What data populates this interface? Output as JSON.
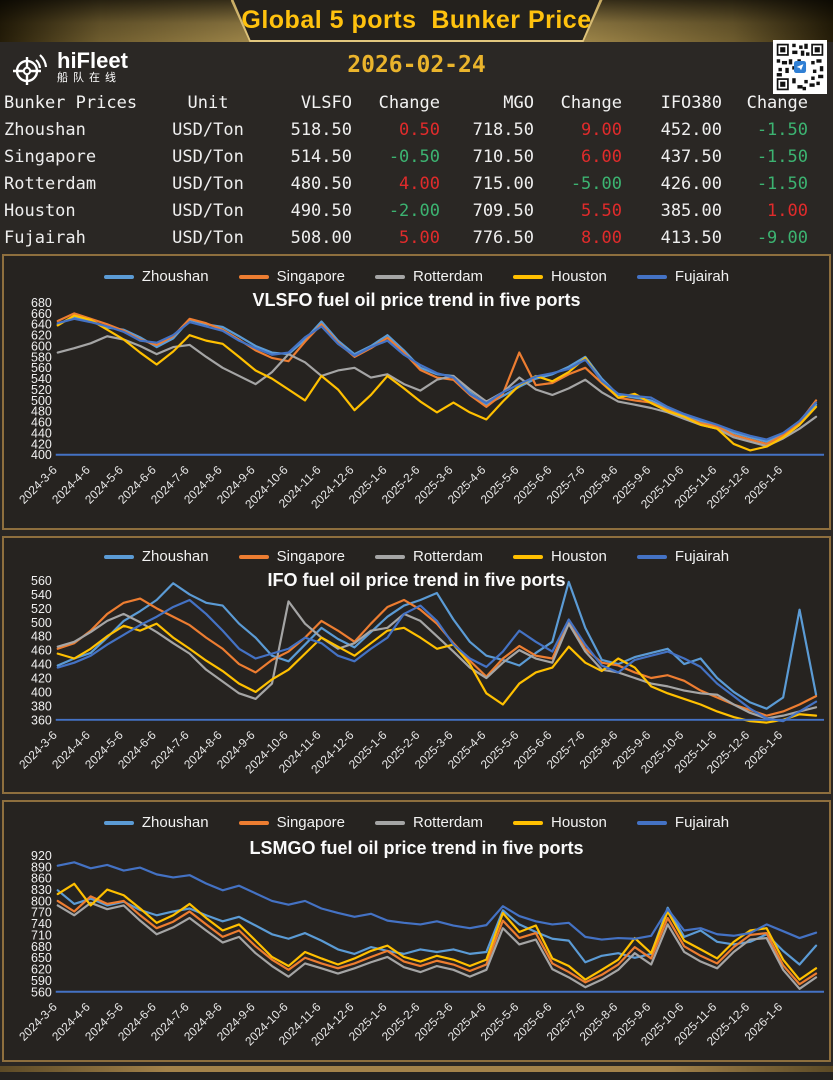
{
  "header": {
    "title": "Global 5 ports  Bunker Price",
    "brand": {
      "name": "hiFleet",
      "subtitle": "船队在线"
    },
    "date": "2026-02-24"
  },
  "colors": {
    "change": {
      "up": "#e02b2b",
      "down": "#3cb371"
    },
    "axis_line": "#4472C4",
    "gold": "#ffc20e"
  },
  "table": {
    "columns": [
      "Bunker Prices",
      "Unit",
      "VLSFO",
      "Change",
      "MGO",
      "Change",
      "IFO380",
      "Change"
    ],
    "rows": [
      {
        "port": "Zhoushan",
        "unit": "USD/Ton",
        "vlsfo": "518.50",
        "vlsfo_chg": "0.50",
        "vlsfo_dir": "up",
        "mgo": "718.50",
        "mgo_chg": "9.00",
        "mgo_dir": "up",
        "ifo": "452.00",
        "ifo_chg": "-1.50",
        "ifo_dir": "down"
      },
      {
        "port": "Singapore",
        "unit": "USD/Ton",
        "vlsfo": "514.50",
        "vlsfo_chg": "-0.50",
        "vlsfo_dir": "down",
        "mgo": "710.50",
        "mgo_chg": "6.00",
        "mgo_dir": "up",
        "ifo": "437.50",
        "ifo_chg": "-1.50",
        "ifo_dir": "down"
      },
      {
        "port": "Rotterdam",
        "unit": "USD/Ton",
        "vlsfo": "480.50",
        "vlsfo_chg": "4.00",
        "vlsfo_dir": "up",
        "mgo": "715.00",
        "mgo_chg": "-5.00",
        "mgo_dir": "down",
        "ifo": "426.00",
        "ifo_chg": "-1.50",
        "ifo_dir": "down"
      },
      {
        "port": "Houston",
        "unit": "USD/Ton",
        "vlsfo": "490.50",
        "vlsfo_chg": "-2.00",
        "vlsfo_dir": "down",
        "mgo": "709.50",
        "mgo_chg": "5.50",
        "mgo_dir": "up",
        "ifo": "385.00",
        "ifo_chg": "1.00",
        "ifo_dir": "up"
      },
      {
        "port": "Fujairah",
        "unit": "USD/Ton",
        "vlsfo": "508.00",
        "vlsfo_chg": "5.00",
        "vlsfo_dir": "up",
        "mgo": "776.50",
        "mgo_chg": "8.00",
        "mgo_dir": "up",
        "ifo": "413.50",
        "ifo_chg": "-9.00",
        "ifo_dir": "down"
      }
    ]
  },
  "chart_data": [
    {
      "type": "line",
      "title": "VLSFO fuel oil price trend in five ports",
      "legend_position": "top",
      "grid": false,
      "ylim": [
        400,
        680
      ],
      "ytick_step": 20,
      "categories": [
        "2024-3-6",
        "2024-4-6",
        "2024-5-6",
        "2024-6-6",
        "2024-7-6",
        "2024-8-6",
        "2024-9-6",
        "2024-10-6",
        "2024-11-6",
        "2024-12-6",
        "2025-1-6",
        "2025-2-6",
        "2025-3-6",
        "2025-4-6",
        "2025-5-6",
        "2025-6-6",
        "2025-7-6",
        "2025-8-6",
        "2025-9-6",
        "2025-10-6",
        "2025-11-6",
        "2025-12-6",
        "2026-1-6"
      ],
      "series": [
        {
          "name": "Zhoushan",
          "color": "#5B9BD5",
          "values": [
            640,
            654,
            646,
            634,
            630,
            616,
            598,
            614,
            648,
            640,
            635,
            618,
            600,
            588,
            585,
            612,
            645,
            610,
            585,
            600,
            620,
            592,
            560,
            548,
            545,
            515,
            492,
            508,
            525,
            540,
            548,
            562,
            580,
            540,
            510,
            505,
            500,
            485,
            472,
            462,
            452,
            440,
            432,
            424,
            438,
            458,
            492
          ]
        },
        {
          "name": "Singapore",
          "color": "#ED7D31",
          "values": [
            646,
            660,
            650,
            640,
            628,
            612,
            602,
            618,
            650,
            642,
            630,
            612,
            592,
            578,
            572,
            608,
            640,
            606,
            580,
            596,
            615,
            588,
            556,
            542,
            538,
            510,
            488,
            512,
            588,
            528,
            532,
            548,
            560,
            532,
            505,
            500,
            496,
            482,
            470,
            458,
            452,
            436,
            428,
            420,
            436,
            460,
            500
          ]
        },
        {
          "name": "Rotterdam",
          "color": "#A5A5A5",
          "values": [
            588,
            596,
            605,
            618,
            612,
            600,
            585,
            598,
            602,
            580,
            560,
            545,
            530,
            552,
            585,
            570,
            545,
            555,
            560,
            542,
            548,
            530,
            518,
            538,
            545,
            520,
            498,
            515,
            542,
            520,
            510,
            522,
            538,
            515,
            498,
            492,
            486,
            478,
            466,
            455,
            448,
            432,
            424,
            416,
            430,
            448,
            470
          ]
        },
        {
          "name": "Houston",
          "color": "#FFC000",
          "values": [
            638,
            656,
            648,
            630,
            612,
            588,
            566,
            590,
            620,
            610,
            604,
            580,
            555,
            540,
            520,
            500,
            545,
            520,
            482,
            510,
            545,
            522,
            498,
            478,
            496,
            478,
            465,
            498,
            528,
            545,
            535,
            552,
            578,
            535,
            505,
            512,
            495,
            480,
            470,
            455,
            448,
            420,
            408,
            415,
            432,
            455,
            488
          ]
        },
        {
          "name": "Fujairah",
          "color": "#4472C4",
          "values": [
            642,
            650,
            644,
            636,
            626,
            610,
            606,
            620,
            644,
            636,
            628,
            610,
            596,
            584,
            588,
            616,
            636,
            604,
            582,
            598,
            610,
            584,
            565,
            550,
            542,
            512,
            495,
            515,
            530,
            544,
            550,
            558,
            575,
            536,
            512,
            508,
            505,
            488,
            475,
            465,
            455,
            444,
            435,
            428,
            440,
            462,
            496
          ]
        }
      ]
    },
    {
      "type": "line",
      "title": "IFO fuel oil price trend in five ports",
      "legend_position": "top",
      "grid": false,
      "ylim": [
        360,
        560
      ],
      "ytick_step": 20,
      "categories": [
        "2024-3-6",
        "2024-4-6",
        "2024-5-6",
        "2024-6-6",
        "2024-7-6",
        "2024-8-6",
        "2024-9-6",
        "2024-10-6",
        "2024-11-6",
        "2024-12-6",
        "2025-1-6",
        "2025-2-6",
        "2025-3-6",
        "2025-4-6",
        "2025-5-6",
        "2025-6-6",
        "2025-7-6",
        "2025-8-6",
        "2025-9-6",
        "2025-10-6",
        "2025-11-6",
        "2025-12-6",
        "2026-1-6"
      ],
      "series": [
        {
          "name": "Zhoushan",
          "color": "#5B9BD5",
          "values": [
            438,
            448,
            456,
            478,
            502,
            516,
            532,
            556,
            540,
            528,
            524,
            498,
            478,
            452,
            444,
            468,
            492,
            476,
            464,
            486,
            508,
            524,
            532,
            542,
            504,
            472,
            452,
            446,
            438,
            456,
            472,
            558,
            492,
            446,
            440,
            450,
            456,
            462,
            440,
            448,
            420,
            400,
            385,
            376,
            392,
            518,
            396
          ]
        },
        {
          "name": "Singapore",
          "color": "#ED7D31",
          "values": [
            462,
            470,
            488,
            512,
            528,
            534,
            520,
            508,
            496,
            478,
            462,
            440,
            428,
            446,
            458,
            478,
            502,
            488,
            472,
            498,
            522,
            532,
            518,
            498,
            470,
            445,
            422,
            448,
            466,
            452,
            448,
            502,
            462,
            442,
            438,
            428,
            420,
            424,
            416,
            402,
            392,
            382,
            374,
            366,
            372,
            382,
            394
          ]
        },
        {
          "name": "Rotterdam",
          "color": "#A5A5A5",
          "values": [
            465,
            472,
            486,
            502,
            512,
            500,
            486,
            470,
            455,
            432,
            415,
            398,
            390,
            412,
            530,
            498,
            478,
            462,
            470,
            488,
            492,
            512,
            502,
            480,
            458,
            435,
            420,
            442,
            460,
            448,
            442,
            498,
            458,
            432,
            428,
            420,
            412,
            408,
            402,
            398,
            396,
            382,
            370,
            362,
            366,
            372,
            378
          ]
        },
        {
          "name": "Houston",
          "color": "#FFC000",
          "values": [
            455,
            448,
            462,
            480,
            495,
            488,
            498,
            478,
            462,
            445,
            430,
            412,
            400,
            418,
            432,
            455,
            478,
            465,
            452,
            470,
            488,
            492,
            478,
            462,
            468,
            440,
            398,
            382,
            412,
            428,
            435,
            465,
            442,
            430,
            448,
            435,
            408,
            398,
            390,
            382,
            372,
            364,
            358,
            356,
            360,
            368,
            366
          ]
        },
        {
          "name": "Fujairah",
          "color": "#4472C4",
          "values": [
            435,
            442,
            452,
            468,
            482,
            496,
            508,
            522,
            532,
            512,
            488,
            462,
            448,
            455,
            462,
            478,
            470,
            452,
            444,
            462,
            478,
            512,
            524,
            502,
            468,
            448,
            436,
            458,
            488,
            472,
            458,
            504,
            468,
            438,
            428,
            446,
            452,
            458,
            448,
            436,
            412,
            394,
            376,
            362,
            358,
            372,
            386
          ]
        }
      ]
    },
    {
      "type": "line",
      "title": "LSMGO fuel oil price trend in five ports",
      "legend_position": "top",
      "grid": false,
      "ylim": [
        560,
        920
      ],
      "ytick_step": 30,
      "categories": [
        "2024-3-6",
        "2024-4-6",
        "2024-5-6",
        "2024-6-6",
        "2024-7-6",
        "2024-8-6",
        "2024-9-6",
        "2024-10-6",
        "2024-11-6",
        "2024-12-6",
        "2025-1-6",
        "2025-2-6",
        "2025-3-6",
        "2025-4-6",
        "2025-5-6",
        "2025-6-6",
        "2025-7-6",
        "2025-8-6",
        "2025-9-6",
        "2025-10-6",
        "2025-11-6",
        "2025-12-6",
        "2026-1-6"
      ],
      "series": [
        {
          "name": "Zhoushan",
          "color": "#5B9BD5",
          "values": [
            828,
            792,
            806,
            788,
            798,
            776,
            762,
            772,
            780,
            762,
            746,
            758,
            735,
            712,
            700,
            715,
            695,
            672,
            660,
            678,
            668,
            660,
            672,
            665,
            672,
            660,
            665,
            775,
            738,
            718,
            700,
            695,
            638,
            655,
            662,
            650,
            660,
            782,
            705,
            722,
            692,
            685,
            692,
            712,
            668,
            632,
            682
          ]
        },
        {
          "name": "Singapore",
          "color": "#ED7D31",
          "values": [
            800,
            772,
            812,
            792,
            800,
            762,
            728,
            745,
            772,
            738,
            705,
            722,
            680,
            645,
            618,
            650,
            635,
            622,
            635,
            652,
            668,
            640,
            628,
            642,
            632,
            615,
            632,
            748,
            702,
            715,
            635,
            612,
            585,
            605,
            632,
            678,
            648,
            755,
            680,
            655,
            635,
            678,
            710,
            715,
            630,
            580,
            608
          ]
        },
        {
          "name": "Rotterdam",
          "color": "#A5A5A5",
          "values": [
            788,
            762,
            795,
            778,
            788,
            748,
            712,
            730,
            755,
            722,
            690,
            705,
            662,
            628,
            600,
            635,
            622,
            608,
            622,
            638,
            652,
            625,
            612,
            628,
            618,
            600,
            618,
            728,
            685,
            698,
            620,
            598,
            572,
            592,
            618,
            662,
            632,
            738,
            665,
            640,
            622,
            665,
            698,
            702,
            618,
            568,
            598
          ]
        },
        {
          "name": "Houston",
          "color": "#FFC000",
          "values": [
            818,
            845,
            788,
            830,
            815,
            780,
            742,
            762,
            792,
            755,
            722,
            738,
            695,
            652,
            628,
            665,
            648,
            632,
            648,
            668,
            682,
            652,
            640,
            655,
            645,
            628,
            645,
            768,
            718,
            735,
            648,
            628,
            592,
            618,
            645,
            702,
            662,
            772,
            695,
            672,
            648,
            692,
            722,
            728,
            645,
            592,
            622
          ]
        },
        {
          "name": "Fujairah",
          "color": "#4472C4",
          "values": [
            893,
            902,
            886,
            895,
            880,
            888,
            870,
            862,
            868,
            846,
            828,
            840,
            820,
            800,
            790,
            800,
            780,
            768,
            758,
            766,
            748,
            742,
            738,
            746,
            735,
            728,
            736,
            786,
            760,
            746,
            738,
            742,
            705,
            698,
            702,
            700,
            708,
            778,
            722,
            728,
            712,
            708,
            715,
            738,
            720,
            702,
            716
          ]
        }
      ]
    }
  ]
}
